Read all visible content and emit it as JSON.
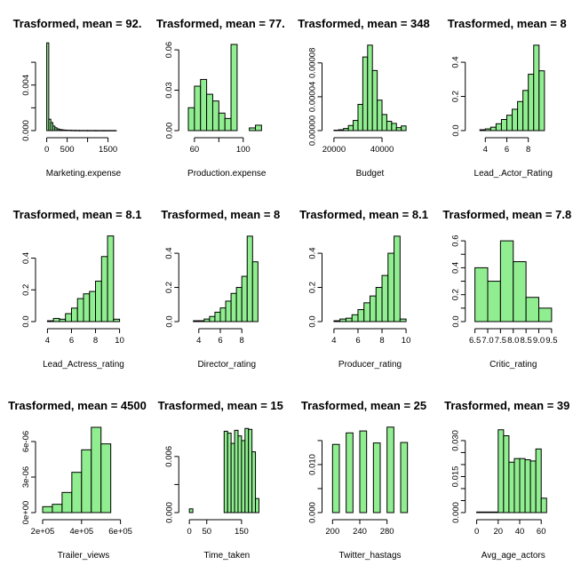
{
  "chart_data": [
    {
      "type": "bar",
      "title": "Trasformed, mean = 92.",
      "xlabel": "Marketing.expense",
      "xlim": [
        -100,
        1900
      ],
      "ylim": [
        0,
        0.0078
      ],
      "xticks": [
        0,
        500,
        1000,
        1500
      ],
      "xtick_labels": [
        "0",
        "500",
        "",
        "1500"
      ],
      "yticks": [
        0,
        0.002,
        0.004,
        0.006
      ],
      "ytick_labels": [
        "0.000",
        "",
        "0.004",
        ""
      ],
      "bins": [
        [
          0,
          50,
          0.0077
        ],
        [
          50,
          100,
          0.001
        ],
        [
          100,
          150,
          0.0007
        ],
        [
          150,
          200,
          0.0004
        ],
        [
          200,
          250,
          0.00025
        ],
        [
          250,
          300,
          0.00015
        ],
        [
          300,
          350,
          0.0001
        ],
        [
          350,
          400,
          7e-05
        ],
        [
          400,
          450,
          5e-05
        ],
        [
          450,
          500,
          4e-05
        ],
        [
          500,
          600,
          3e-05
        ],
        [
          600,
          700,
          2e-05
        ],
        [
          700,
          800,
          1.5e-05
        ],
        [
          800,
          1000,
          1e-05
        ],
        [
          1000,
          1200,
          8e-06
        ],
        [
          1200,
          1400,
          6e-06
        ],
        [
          1400,
          1700,
          5e-06
        ]
      ]
    },
    {
      "type": "bar",
      "title": "Trasformed, mean = 77.",
      "xlabel": "Production.expense",
      "xlim": [
        53,
        120
      ],
      "ylim": [
        0,
        0.066
      ],
      "xticks": [
        60,
        80,
        100
      ],
      "xtick_labels": [
        "60",
        "",
        "100"
      ],
      "yticks": [
        0,
        0.03,
        0.06
      ],
      "ytick_labels": [
        "0.00",
        "0.03",
        "0.06"
      ],
      "bins": [
        [
          55,
          60,
          0.017
        ],
        [
          60,
          65,
          0.033
        ],
        [
          65,
          70,
          0.038
        ],
        [
          70,
          75,
          0.027
        ],
        [
          75,
          80,
          0.022
        ],
        [
          80,
          85,
          0.013
        ],
        [
          85,
          90,
          0.009
        ],
        [
          90,
          95,
          0.064
        ],
        [
          95,
          100,
          0.0
        ],
        [
          100,
          105,
          0.0
        ],
        [
          105,
          110,
          0.002
        ],
        [
          110,
          115,
          0.004
        ]
      ]
    },
    {
      "type": "bar",
      "title": "Trasformed, mean = 348",
      "xlabel": "Budget",
      "xlim": [
        18000,
        52000
      ],
      "ylim": [
        0,
        0.000105
      ],
      "xticks": [
        20000,
        40000
      ],
      "xtick_labels": [
        "20000",
        "40000"
      ],
      "yticks": [
        0,
        4e-05,
        8e-05
      ],
      "ytick_labels": [
        "0.00000",
        "0.00004",
        "0.00008"
      ],
      "bins": [
        [
          20000,
          22000,
          5e-07
        ],
        [
          22000,
          24000,
          1e-06
        ],
        [
          24000,
          26000,
          2.5e-06
        ],
        [
          26000,
          28000,
          6e-06
        ],
        [
          28000,
          30000,
          1.2e-05
        ],
        [
          30000,
          32000,
          3.1e-05
        ],
        [
          32000,
          34000,
          8.7e-05
        ],
        [
          34000,
          36000,
          0.000101
        ],
        [
          36000,
          38000,
          7.1e-05
        ],
        [
          38000,
          40000,
          3.6e-05
        ],
        [
          40000,
          42000,
          1.9e-05
        ],
        [
          42000,
          44000,
          1.1e-05
        ],
        [
          44000,
          46000,
          8.5e-06
        ],
        [
          46000,
          48000,
          3.5e-06
        ],
        [
          48000,
          50000,
          5.5e-06
        ]
      ]
    },
    {
      "type": "bar",
      "title": "Trasformed, mean = 8",
      "xlabel": "Lead_.Actor_Rating",
      "xlim": [
        2.8,
        10.4
      ],
      "ylim": [
        0,
        0.52
      ],
      "xticks": [
        4,
        6,
        8
      ],
      "xtick_labels": [
        "4",
        "6",
        "8"
      ],
      "yticks": [
        0,
        0.2,
        0.4
      ],
      "ytick_labels": [
        "0.0",
        "0.2",
        "0.4"
      ],
      "bins": [
        [
          3.5,
          4,
          0.005
        ],
        [
          4,
          4.5,
          0.01
        ],
        [
          4.5,
          5,
          0.02
        ],
        [
          5,
          5.5,
          0.04
        ],
        [
          5.5,
          6,
          0.065
        ],
        [
          6,
          6.5,
          0.09
        ],
        [
          6.5,
          7,
          0.125
        ],
        [
          7,
          7.5,
          0.17
        ],
        [
          7.5,
          8,
          0.235
        ],
        [
          8,
          8.5,
          0.33
        ],
        [
          8.5,
          9,
          0.5
        ],
        [
          9,
          9.5,
          0.35
        ]
      ]
    },
    {
      "type": "bar",
      "title": "Trasformed, mean = 8.1",
      "xlabel": "Lead_Actress_rating",
      "xlim": [
        3.6,
        10.4
      ],
      "ylim": [
        0,
        0.56
      ],
      "xticks": [
        4,
        6,
        8,
        10
      ],
      "xtick_labels": [
        "4",
        "6",
        "8",
        "10"
      ],
      "yticks": [
        0,
        0.2,
        0.4
      ],
      "ytick_labels": [
        "0.0",
        "0.2",
        "0.4"
      ],
      "bins": [
        [
          4,
          4.5,
          0.005
        ],
        [
          4.5,
          5,
          0.02
        ],
        [
          5,
          5.5,
          0.015
        ],
        [
          5.5,
          6,
          0.05
        ],
        [
          6,
          6.5,
          0.085
        ],
        [
          6.5,
          7,
          0.145
        ],
        [
          7,
          7.5,
          0.175
        ],
        [
          7.5,
          8,
          0.19
        ],
        [
          8,
          8.5,
          0.255
        ],
        [
          8.5,
          9,
          0.41
        ],
        [
          9,
          9.5,
          0.54
        ],
        [
          9.5,
          10,
          0.015
        ]
      ]
    },
    {
      "type": "bar",
      "title": "Trasformed, mean = 8",
      "xlabel": "Director_rating",
      "xlim": [
        2.8,
        10.4
      ],
      "ylim": [
        0,
        0.52
      ],
      "xticks": [
        4,
        6,
        8
      ],
      "xtick_labels": [
        "4",
        "6",
        "8"
      ],
      "yticks": [
        0,
        0.2,
        0.4
      ],
      "ytick_labels": [
        "0.0",
        "0.2",
        "0.4"
      ],
      "bins": [
        [
          3.5,
          4,
          0.005
        ],
        [
          4,
          4.5,
          0.005
        ],
        [
          4.5,
          5,
          0.015
        ],
        [
          5,
          5.5,
          0.03
        ],
        [
          5.5,
          6,
          0.055
        ],
        [
          6,
          6.5,
          0.08
        ],
        [
          6.5,
          7,
          0.12
        ],
        [
          7,
          7.5,
          0.165
        ],
        [
          7.5,
          8,
          0.2
        ],
        [
          8,
          8.5,
          0.265
        ],
        [
          8.5,
          9,
          0.5
        ],
        [
          9,
          9.5,
          0.35
        ]
      ]
    },
    {
      "type": "bar",
      "title": "Trasformed, mean = 8.1",
      "xlabel": "Producer_rating",
      "xlim": [
        3.6,
        10.4
      ],
      "ylim": [
        0,
        0.52
      ],
      "xticks": [
        4,
        6,
        8,
        10
      ],
      "xtick_labels": [
        "4",
        "6",
        "8",
        "10"
      ],
      "yticks": [
        0,
        0.2,
        0.4
      ],
      "ytick_labels": [
        "0.0",
        "0.2",
        "0.4"
      ],
      "bins": [
        [
          4,
          4.5,
          0.005
        ],
        [
          4.5,
          5,
          0.015
        ],
        [
          5,
          5.5,
          0.02
        ],
        [
          5.5,
          6,
          0.04
        ],
        [
          6,
          6.5,
          0.07
        ],
        [
          6.5,
          7,
          0.11
        ],
        [
          7,
          7.5,
          0.15
        ],
        [
          7.5,
          8,
          0.2
        ],
        [
          8,
          8.5,
          0.27
        ],
        [
          8.5,
          9,
          0.4
        ],
        [
          9,
          9.5,
          0.5
        ],
        [
          9.5,
          10,
          0.015
        ]
      ]
    },
    {
      "type": "bar",
      "title": "Trasformed, mean = 7.8",
      "xlabel": "Critic_rating",
      "xlim": [
        6.4,
        9.6
      ],
      "ylim": [
        0,
        0.66
      ],
      "xticks": [
        6.5,
        7,
        7.5,
        8,
        8.5,
        9,
        9.5
      ],
      "xtick_labels": [
        "6.5",
        "7.0",
        "7.5",
        "8.0",
        "8.5",
        "9.0",
        "9.5"
      ],
      "yticks": [
        0,
        0.1,
        0.2,
        0.3,
        0.4,
        0.5,
        0.6
      ],
      "ytick_labels": [
        "0.0",
        "",
        "0.2",
        "",
        "0.4",
        "",
        "0.6"
      ],
      "bins": [
        [
          6.5,
          7,
          0.4
        ],
        [
          7,
          7.5,
          0.3
        ],
        [
          7.5,
          8,
          0.6
        ],
        [
          8,
          8.5,
          0.445
        ],
        [
          8.5,
          9,
          0.18
        ],
        [
          9,
          9.5,
          0.1
        ]
      ]
    },
    {
      "type": "bar",
      "title": "Trasformed, mean = 4500",
      "xlabel": "Trailer_views",
      "xlim": [
        200000,
        620000
      ],
      "ylim": [
        0,
        7.5e-06
      ],
      "xticks": [
        200000,
        400000,
        600000
      ],
      "xtick_labels": [
        "2e+05",
        "4e+05",
        "6e+05"
      ],
      "yticks": [
        0,
        3e-06,
        6e-06
      ],
      "ytick_labels": [
        "0e+00",
        "3e-06",
        "6e-06"
      ],
      "bins": [
        [
          200000,
          250000,
          5e-07
        ],
        [
          250000,
          300000,
          7e-07
        ],
        [
          300000,
          350000,
          1.7e-06
        ],
        [
          350000,
          400000,
          3.4e-06
        ],
        [
          400000,
          450000,
          5.3e-06
        ],
        [
          450000,
          500000,
          7.2e-06
        ],
        [
          500000,
          550000,
          5.8e-06
        ]
      ]
    },
    {
      "type": "bar",
      "title": "Trasformed, mean = 15",
      "xlabel": "Time_taken",
      "xlim": [
        -10,
        225
      ],
      "ylim": [
        0,
        0.0095
      ],
      "xticks": [
        0,
        50,
        150
      ],
      "xtick_labels": [
        "0",
        "50",
        "150"
      ],
      "yticks": [
        0,
        0.003,
        0.006
      ],
      "ytick_labels": [
        "0.000",
        "",
        "0.006"
      ],
      "bins": [
        [
          0,
          10,
          0.0004
        ],
        [
          10,
          100,
          0.0
        ],
        [
          100,
          110,
          0.0087
        ],
        [
          110,
          120,
          0.0085
        ],
        [
          120,
          130,
          0.0074
        ],
        [
          130,
          140,
          0.0088
        ],
        [
          140,
          150,
          0.0082
        ],
        [
          150,
          160,
          0.0077
        ],
        [
          160,
          170,
          0.009
        ],
        [
          170,
          180,
          0.0089
        ],
        [
          180,
          190,
          0.0065
        ],
        [
          190,
          200,
          0.0015
        ]
      ]
    },
    {
      "type": "bar",
      "title": "Trasformed, mean = 25",
      "xlabel": "Twitter_hastags",
      "xlim": [
        195,
        315
      ],
      "ylim": [
        0,
        0.0185
      ],
      "xticks": [
        200,
        240,
        280
      ],
      "xtick_labels": [
        "200",
        "240",
        "280"
      ],
      "yticks": [
        0,
        0.005,
        0.01,
        0.015
      ],
      "ytick_labels": [
        "0.000",
        "",
        "0.010",
        ""
      ],
      "bins": [
        [
          200,
          210,
          0.0142
        ],
        [
          210,
          220,
          0
        ],
        [
          220,
          230,
          0.0166
        ],
        [
          230,
          240,
          0
        ],
        [
          240,
          250,
          0.017
        ],
        [
          250,
          260,
          0
        ],
        [
          260,
          270,
          0.0145
        ],
        [
          270,
          280,
          0
        ],
        [
          280,
          290,
          0.0178
        ],
        [
          290,
          300,
          0
        ],
        [
          300,
          310,
          0.0146
        ]
      ]
    },
    {
      "type": "bar",
      "title": "Trasformed, mean = 39",
      "xlabel": "Avg_age_actors",
      "xlim": [
        -4,
        72
      ],
      "ylim": [
        0,
        0.037
      ],
      "xticks": [
        0,
        20,
        40,
        60
      ],
      "xtick_labels": [
        "0",
        "20",
        "40",
        "60"
      ],
      "yticks": [
        0,
        0.005,
        0.01,
        0.015,
        0.02,
        0.025,
        0.03
      ],
      "ytick_labels": [
        "0.000",
        "",
        "",
        "0.015",
        "",
        "",
        "0.030"
      ],
      "bins": [
        [
          0,
          20,
          0.00025
        ],
        [
          20,
          25,
          0.0345
        ],
        [
          25,
          30,
          0.032
        ],
        [
          30,
          35,
          0.021
        ],
        [
          35,
          40,
          0.0225
        ],
        [
          40,
          45,
          0.0225
        ],
        [
          45,
          50,
          0.022
        ],
        [
          50,
          55,
          0.0215
        ],
        [
          55,
          60,
          0.0265
        ],
        [
          60,
          65,
          0.006
        ]
      ]
    }
  ]
}
